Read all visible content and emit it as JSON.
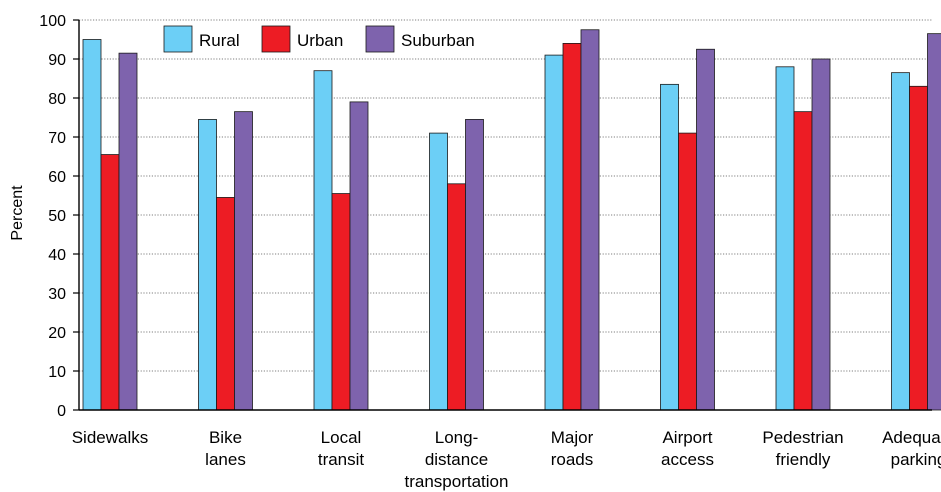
{
  "chart_data": {
    "type": "bar",
    "title": "",
    "xlabel": "",
    "ylabel": "Percent",
    "ylim": [
      0,
      100
    ],
    "yticks": [
      0,
      10,
      20,
      30,
      40,
      50,
      60,
      70,
      80,
      90,
      100
    ],
    "grid": true,
    "legend_position": "top-left",
    "categories": [
      [
        "Sidewalks"
      ],
      [
        "Bike",
        "lanes"
      ],
      [
        "Local",
        "transit"
      ],
      [
        "Long-",
        "distance",
        "transportation"
      ],
      [
        "Major",
        "roads"
      ],
      [
        "Airport",
        "access"
      ],
      [
        "Pedestrian",
        "friendly"
      ],
      [
        "Adequate",
        "parking"
      ]
    ],
    "series": [
      {
        "name": "Rural",
        "color": "#6ccff6",
        "values": [
          95,
          74.5,
          87,
          71,
          91,
          83.5,
          88,
          86.5
        ]
      },
      {
        "name": "Urban",
        "color": "#ed1c24",
        "values": [
          65.5,
          54.5,
          55.5,
          58,
          94,
          71,
          76.5,
          83
        ]
      },
      {
        "name": "Suburban",
        "color": "#7e63ad",
        "values": [
          91.5,
          76.5,
          79,
          74.5,
          97.5,
          92.5,
          90,
          96.5
        ]
      }
    ]
  }
}
